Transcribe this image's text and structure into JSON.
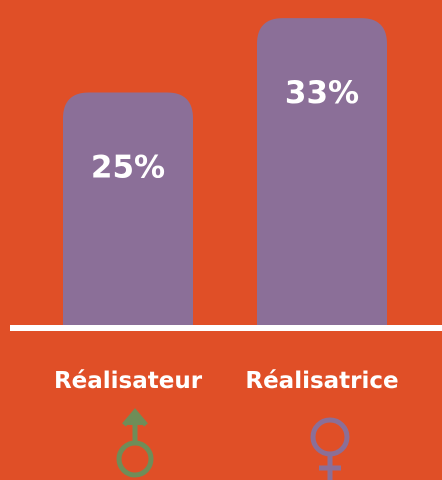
{
  "chart_data": {
    "type": "bar",
    "categories": [
      "Réalisateur",
      "Réalisatrice"
    ],
    "values": [
      25,
      33
    ],
    "value_labels": [
      "25%",
      "33%"
    ],
    "color": "#8b6f98"
  }
}
